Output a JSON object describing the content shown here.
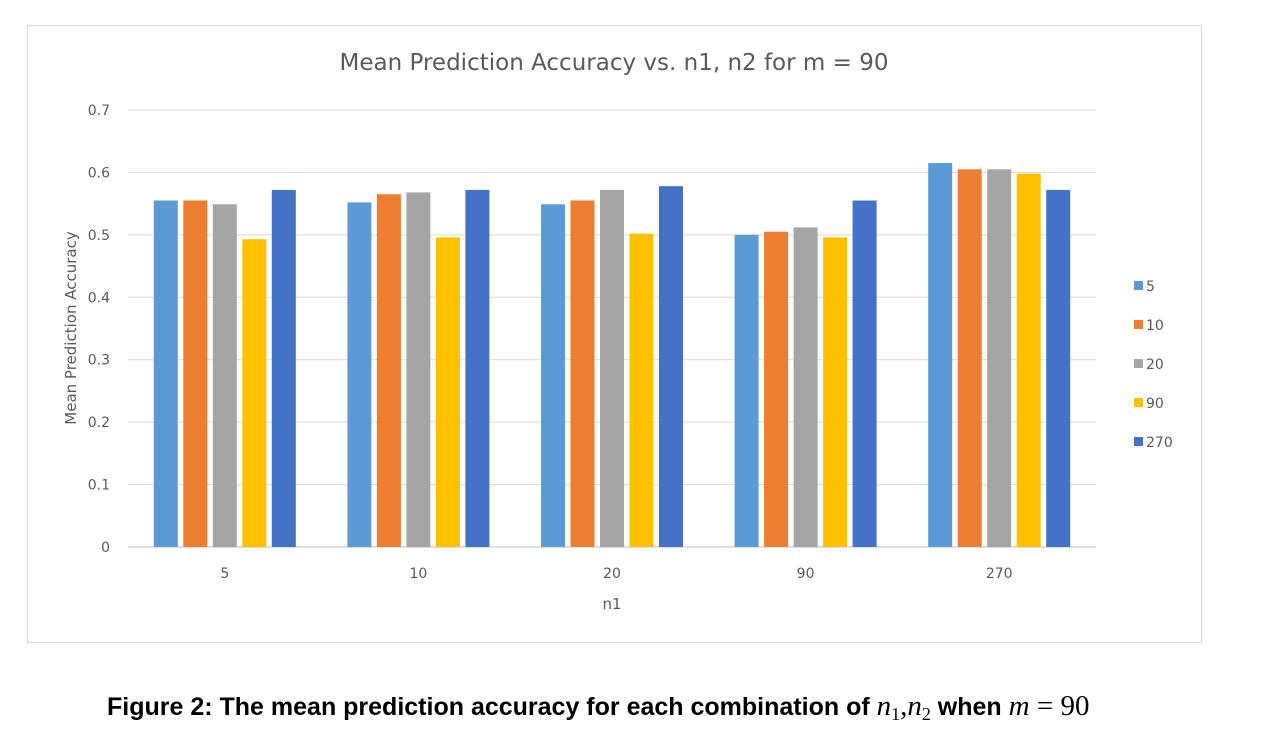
{
  "chart_data": {
    "type": "bar",
    "title": "Mean Prediction Accuracy vs.  n1, n2 for m = 90",
    "xlabel": "n1",
    "ylabel": "Mean Prediction  Accuracy",
    "categories": [
      "5",
      "10",
      "20",
      "90",
      "270"
    ],
    "ylim": [
      0,
      0.7
    ],
    "yticks": [
      "0",
      "0.1",
      "0.2",
      "0.3",
      "0.4",
      "0.5",
      "0.6",
      "0.7"
    ],
    "grid": true,
    "legend_position": "right",
    "series": [
      {
        "name": "5",
        "color": "#5B9BD5",
        "values": [
          0.555,
          0.552,
          0.549,
          0.5,
          0.615
        ]
      },
      {
        "name": "10",
        "color": "#ED7D31",
        "values": [
          0.555,
          0.565,
          0.555,
          0.505,
          0.605
        ]
      },
      {
        "name": "20",
        "color": "#A5A5A5",
        "values": [
          0.549,
          0.568,
          0.572,
          0.512,
          0.605
        ]
      },
      {
        "name": "90",
        "color": "#FFC000",
        "values": [
          0.493,
          0.496,
          0.502,
          0.496,
          0.598
        ]
      },
      {
        "name": "270",
        "color": "#4472C4",
        "values": [
          0.572,
          0.572,
          0.578,
          0.555,
          0.572
        ]
      }
    ]
  },
  "caption": {
    "prefix": "Figure 2: The mean prediction accuracy for each combination of ",
    "var_n": "n",
    "sub1": "1",
    "comma": ",",
    "sub2": "2",
    "when": " when ",
    "var_m": "m",
    "eq": " = 90"
  }
}
